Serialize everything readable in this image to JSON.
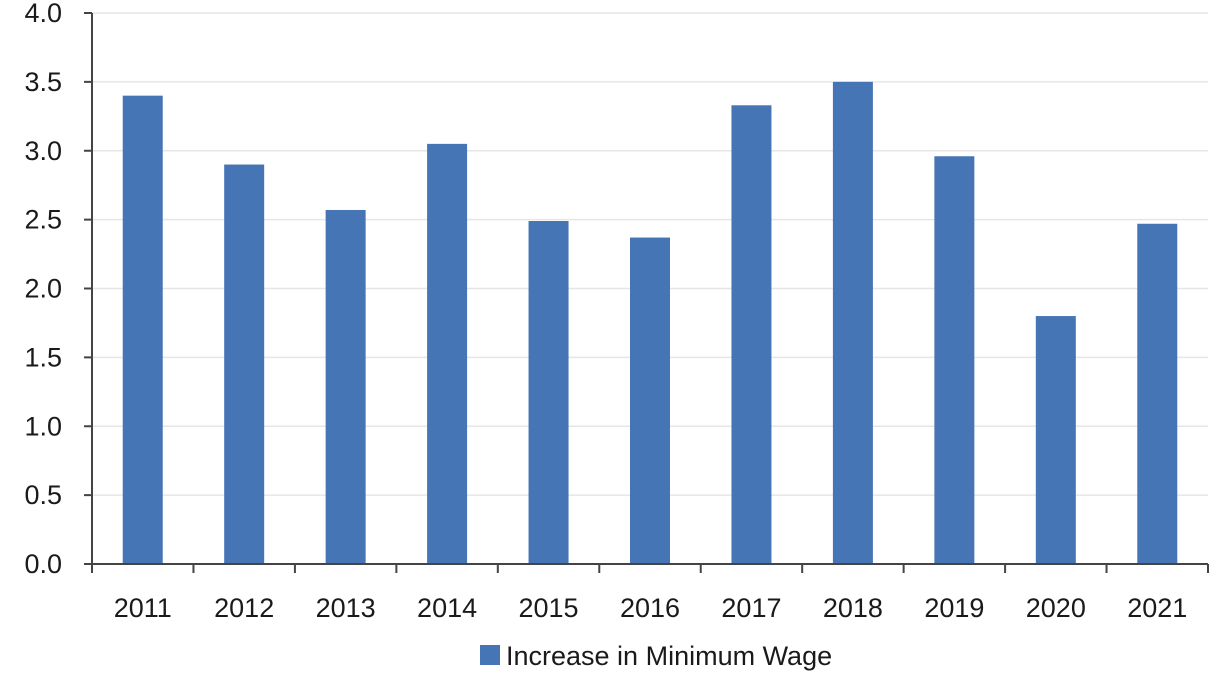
{
  "chart_data": {
    "type": "bar",
    "categories": [
      "2011",
      "2012",
      "2013",
      "2014",
      "2015",
      "2016",
      "2017",
      "2018",
      "2019",
      "2020",
      "2021"
    ],
    "series": [
      {
        "name": "Increase in Minimum Wage",
        "values": [
          3.4,
          2.9,
          2.57,
          3.05,
          2.49,
          2.37,
          3.33,
          3.5,
          2.96,
          1.8,
          2.47
        ],
        "color": "#4575b4"
      }
    ],
    "ylim": [
      0,
      4.0
    ],
    "yticks": [
      "0.0",
      "0.5",
      "1.0",
      "1.5",
      "2.0",
      "2.5",
      "3.0",
      "3.5",
      "4.0"
    ],
    "ytick_values": [
      0,
      0.5,
      1.0,
      1.5,
      2.0,
      2.5,
      3.0,
      3.5,
      4.0
    ],
    "grid": true,
    "legend": "bottom",
    "colors": {
      "axis": "#444444",
      "grid": "#e6e6e6"
    }
  }
}
